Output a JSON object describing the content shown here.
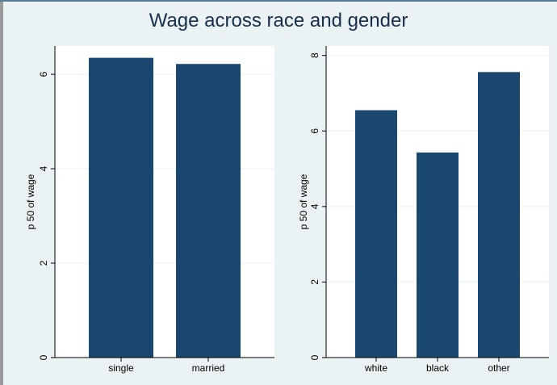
{
  "title": "Wage across race and gender",
  "colors": {
    "bar": "#1a476f",
    "plot_bg": "#ffffff",
    "page_bg": "#eaf2f3",
    "grid": "#eaf2f3"
  },
  "chart_data": [
    {
      "type": "bar",
      "categories": [
        "single",
        "married"
      ],
      "values": [
        6.35,
        6.22
      ],
      "ylabel": "p 50 of wage",
      "yticks": [
        0,
        2,
        4,
        6
      ],
      "ylim": [
        0,
        6.6
      ],
      "grid": true
    },
    {
      "type": "bar",
      "categories": [
        "white",
        "black",
        "other"
      ],
      "values": [
        6.55,
        5.43,
        7.56
      ],
      "ylabel": "p 50 of wage",
      "yticks": [
        0,
        2,
        4,
        6,
        8
      ],
      "ylim": [
        0,
        8.25
      ],
      "grid": true
    }
  ]
}
